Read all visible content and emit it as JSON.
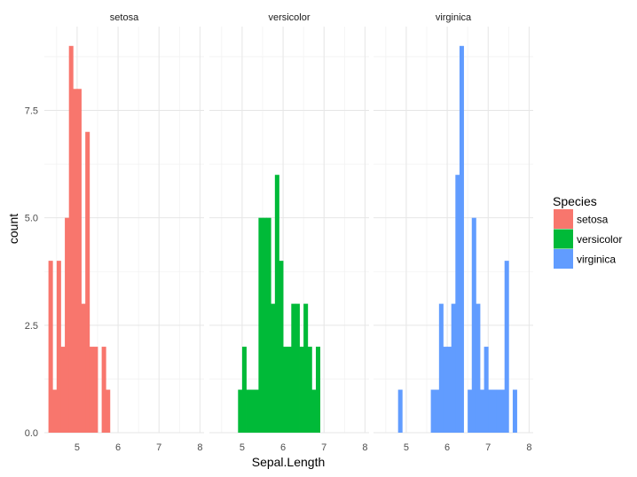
{
  "chart_data": {
    "type": "bar",
    "subtype": "faceted-histogram",
    "title": "",
    "xlabel": "Sepal.Length",
    "ylabel": "count",
    "xlim": [
      4.2,
      8.1
    ],
    "ylim": [
      0,
      9.45
    ],
    "x_ticks": [
      "5",
      "6",
      "7",
      "8"
    ],
    "x_tick_values": [
      5,
      6,
      7,
      8
    ],
    "y_ticks": [
      "0.0",
      "2.5",
      "5.0",
      "7.5"
    ],
    "y_tick_values": [
      0,
      2.5,
      5,
      7.5
    ],
    "grid": true,
    "bin_width": 0.1,
    "legend": {
      "title": "Species",
      "position": "right",
      "entries": [
        "setosa",
        "versicolor",
        "virginica"
      ]
    },
    "series": [
      {
        "name": "setosa",
        "color": "#F8766D",
        "bins": [
          {
            "x": 4.3,
            "count": 4
          },
          {
            "x": 4.4,
            "count": 1
          },
          {
            "x": 4.5,
            "count": 4
          },
          {
            "x": 4.6,
            "count": 2
          },
          {
            "x": 4.7,
            "count": 5
          },
          {
            "x": 4.8,
            "count": 9
          },
          {
            "x": 4.9,
            "count": 8
          },
          {
            "x": 5.0,
            "count": 8
          },
          {
            "x": 5.1,
            "count": 3
          },
          {
            "x": 5.2,
            "count": 7
          },
          {
            "x": 5.3,
            "count": 2
          },
          {
            "x": 5.4,
            "count": 2
          },
          {
            "x": 5.6,
            "count": 2
          },
          {
            "x": 5.7,
            "count": 1
          }
        ]
      },
      {
        "name": "versicolor",
        "color": "#00BA38",
        "bins": [
          {
            "x": 4.9,
            "count": 1
          },
          {
            "x": 5.0,
            "count": 2
          },
          {
            "x": 5.1,
            "count": 1
          },
          {
            "x": 5.2,
            "count": 1
          },
          {
            "x": 5.3,
            "count": 1
          },
          {
            "x": 5.4,
            "count": 5
          },
          {
            "x": 5.5,
            "count": 5
          },
          {
            "x": 5.6,
            "count": 5
          },
          {
            "x": 5.7,
            "count": 3
          },
          {
            "x": 5.8,
            "count": 6
          },
          {
            "x": 5.9,
            "count": 4
          },
          {
            "x": 6.0,
            "count": 2
          },
          {
            "x": 6.1,
            "count": 2
          },
          {
            "x": 6.2,
            "count": 3
          },
          {
            "x": 6.3,
            "count": 3
          },
          {
            "x": 6.4,
            "count": 2
          },
          {
            "x": 6.5,
            "count": 3
          },
          {
            "x": 6.6,
            "count": 2
          },
          {
            "x": 6.7,
            "count": 1
          },
          {
            "x": 6.8,
            "count": 2
          }
        ]
      },
      {
        "name": "virginica",
        "color": "#619CFF",
        "bins": [
          {
            "x": 4.8,
            "count": 1
          },
          {
            "x": 5.6,
            "count": 1
          },
          {
            "x": 5.7,
            "count": 1
          },
          {
            "x": 5.8,
            "count": 3
          },
          {
            "x": 5.9,
            "count": 2
          },
          {
            "x": 6.0,
            "count": 2
          },
          {
            "x": 6.1,
            "count": 3
          },
          {
            "x": 6.2,
            "count": 6
          },
          {
            "x": 6.3,
            "count": 9
          },
          {
            "x": 6.5,
            "count": 1
          },
          {
            "x": 6.6,
            "count": 5
          },
          {
            "x": 6.7,
            "count": 3
          },
          {
            "x": 6.8,
            "count": 1
          },
          {
            "x": 6.9,
            "count": 2
          },
          {
            "x": 7.0,
            "count": 1
          },
          {
            "x": 7.1,
            "count": 1
          },
          {
            "x": 7.2,
            "count": 1
          },
          {
            "x": 7.3,
            "count": 1
          },
          {
            "x": 7.4,
            "count": 4
          },
          {
            "x": 7.6,
            "count": 1
          }
        ]
      }
    ]
  }
}
